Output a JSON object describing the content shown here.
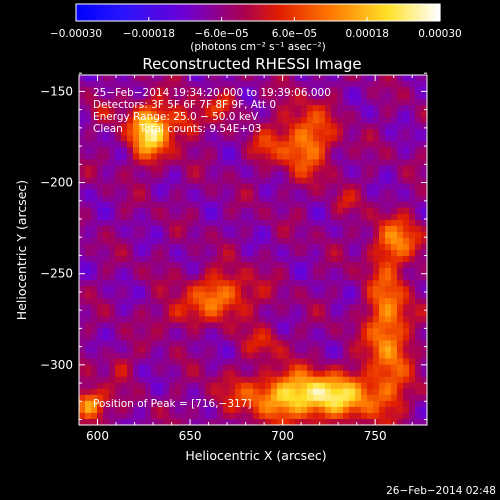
{
  "chart_data": {
    "type": "heatmap",
    "title": "Reconstructed RHESSI Image",
    "xlabel": "Heliocentric X (arcsec)",
    "ylabel": "Heliocentric Y (arcsec)",
    "xlim": [
      590,
      778
    ],
    "ylim": [
      -333,
      -141
    ],
    "x_ticks": [
      600,
      650,
      700,
      750
    ],
    "y_ticks": [
      -150,
      -200,
      -250,
      -300
    ],
    "x_tick_labels": [
      "600",
      "650",
      "700",
      "750"
    ],
    "y_tick_labels": [
      "−150",
      "−200",
      "−250",
      "−300"
    ],
    "colorbar": {
      "range": [
        -0.0003,
        0.0003
      ],
      "tick_values": [
        -0.0003,
        -0.00018,
        -6e-05,
        6e-05,
        0.00018,
        0.0003
      ],
      "tick_labels": [
        "−0.00030",
        "−0.00018",
        "−6.0e−05",
        "6.0e−05",
        "0.00018",
        "0.00030"
      ],
      "unit_label": "(photons cm⁻² s⁻¹ asec⁻²)"
    },
    "annotations": [
      "25−Feb−2014 19:34:20.000 to 19:39:06.000",
      "Detectors: 3F 5F 6F 7F 8F 9F, Att 0",
      "Energy Range: 25.0 − 50.0 keV",
      "Clean     Total counts: 9.54E+03"
    ],
    "peak_label": "Position of Peak = [716,−317]",
    "sources": [
      {
        "x": 628,
        "y": -172,
        "sx": 8,
        "sy": 11,
        "amp": 0.0003
      },
      {
        "x": 648,
        "y": -167,
        "sx": 6,
        "sy": 7,
        "amp": 0.00014
      },
      {
        "x": 668,
        "y": -157,
        "sx": 6,
        "sy": 5,
        "amp": 0.00011
      },
      {
        "x": 712,
        "y": -177,
        "sx": 11,
        "sy": 13,
        "amp": 0.0002
      },
      {
        "x": 690,
        "y": -181,
        "sx": 6,
        "sy": 6,
        "amp": 8e-05
      },
      {
        "x": 762,
        "y": -232,
        "sx": 10,
        "sy": 9,
        "amp": 0.00016
      },
      {
        "x": 757,
        "y": -280,
        "sx": 8,
        "sy": 24,
        "amp": 0.00022
      },
      {
        "x": 667,
        "y": -262,
        "sx": 13,
        "sy": 9,
        "amp": 0.00019
      },
      {
        "x": 642,
        "y": -273,
        "sx": 7,
        "sy": 6,
        "amp": 0.0001
      },
      {
        "x": 716,
        "y": -317,
        "sx": 26,
        "sy": 9,
        "amp": 0.00033
      },
      {
        "x": 596,
        "y": -322,
        "sx": 6,
        "sy": 6,
        "amp": 0.00026
      },
      {
        "x": 612,
        "y": -300,
        "sx": 5,
        "sy": 6,
        "amp": 8e-05
      },
      {
        "x": 733,
        "y": -211,
        "sx": 5,
        "sy": 5,
        "amp": 7e-05
      },
      {
        "x": 600,
        "y": -161,
        "sx": 4,
        "sy": 4,
        "amp": 6e-05
      },
      {
        "x": 691,
        "y": -288,
        "sx": 8,
        "sy": 6,
        "amp": 9e-05
      }
    ],
    "background_level": -7e-05,
    "texture_amplitude": 4e-05
  },
  "footer_timestamp": "26−Feb−2014 02:48"
}
